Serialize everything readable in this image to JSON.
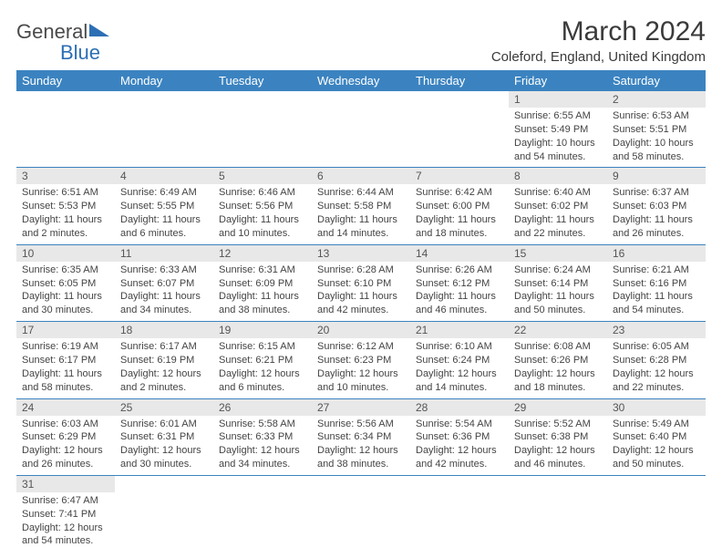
{
  "logo": {
    "text1": "General",
    "text2": "Blue"
  },
  "title": "March 2024",
  "location": "Coleford, England, United Kingdom",
  "header_bg": "#3b83c0",
  "daynum_bg": "#e8e8e8",
  "border_color": "#3b83c0",
  "weekdays": [
    "Sunday",
    "Monday",
    "Tuesday",
    "Wednesday",
    "Thursday",
    "Friday",
    "Saturday"
  ],
  "weeks": [
    [
      {
        "blank": true
      },
      {
        "blank": true
      },
      {
        "blank": true
      },
      {
        "blank": true
      },
      {
        "blank": true
      },
      {
        "day": "1",
        "sunrise": "Sunrise: 6:55 AM",
        "sunset": "Sunset: 5:49 PM",
        "daylight": "Daylight: 10 hours and 54 minutes."
      },
      {
        "day": "2",
        "sunrise": "Sunrise: 6:53 AM",
        "sunset": "Sunset: 5:51 PM",
        "daylight": "Daylight: 10 hours and 58 minutes."
      }
    ],
    [
      {
        "day": "3",
        "sunrise": "Sunrise: 6:51 AM",
        "sunset": "Sunset: 5:53 PM",
        "daylight": "Daylight: 11 hours and 2 minutes."
      },
      {
        "day": "4",
        "sunrise": "Sunrise: 6:49 AM",
        "sunset": "Sunset: 5:55 PM",
        "daylight": "Daylight: 11 hours and 6 minutes."
      },
      {
        "day": "5",
        "sunrise": "Sunrise: 6:46 AM",
        "sunset": "Sunset: 5:56 PM",
        "daylight": "Daylight: 11 hours and 10 minutes."
      },
      {
        "day": "6",
        "sunrise": "Sunrise: 6:44 AM",
        "sunset": "Sunset: 5:58 PM",
        "daylight": "Daylight: 11 hours and 14 minutes."
      },
      {
        "day": "7",
        "sunrise": "Sunrise: 6:42 AM",
        "sunset": "Sunset: 6:00 PM",
        "daylight": "Daylight: 11 hours and 18 minutes."
      },
      {
        "day": "8",
        "sunrise": "Sunrise: 6:40 AM",
        "sunset": "Sunset: 6:02 PM",
        "daylight": "Daylight: 11 hours and 22 minutes."
      },
      {
        "day": "9",
        "sunrise": "Sunrise: 6:37 AM",
        "sunset": "Sunset: 6:03 PM",
        "daylight": "Daylight: 11 hours and 26 minutes."
      }
    ],
    [
      {
        "day": "10",
        "sunrise": "Sunrise: 6:35 AM",
        "sunset": "Sunset: 6:05 PM",
        "daylight": "Daylight: 11 hours and 30 minutes."
      },
      {
        "day": "11",
        "sunrise": "Sunrise: 6:33 AM",
        "sunset": "Sunset: 6:07 PM",
        "daylight": "Daylight: 11 hours and 34 minutes."
      },
      {
        "day": "12",
        "sunrise": "Sunrise: 6:31 AM",
        "sunset": "Sunset: 6:09 PM",
        "daylight": "Daylight: 11 hours and 38 minutes."
      },
      {
        "day": "13",
        "sunrise": "Sunrise: 6:28 AM",
        "sunset": "Sunset: 6:10 PM",
        "daylight": "Daylight: 11 hours and 42 minutes."
      },
      {
        "day": "14",
        "sunrise": "Sunrise: 6:26 AM",
        "sunset": "Sunset: 6:12 PM",
        "daylight": "Daylight: 11 hours and 46 minutes."
      },
      {
        "day": "15",
        "sunrise": "Sunrise: 6:24 AM",
        "sunset": "Sunset: 6:14 PM",
        "daylight": "Daylight: 11 hours and 50 minutes."
      },
      {
        "day": "16",
        "sunrise": "Sunrise: 6:21 AM",
        "sunset": "Sunset: 6:16 PM",
        "daylight": "Daylight: 11 hours and 54 minutes."
      }
    ],
    [
      {
        "day": "17",
        "sunrise": "Sunrise: 6:19 AM",
        "sunset": "Sunset: 6:17 PM",
        "daylight": "Daylight: 11 hours and 58 minutes."
      },
      {
        "day": "18",
        "sunrise": "Sunrise: 6:17 AM",
        "sunset": "Sunset: 6:19 PM",
        "daylight": "Daylight: 12 hours and 2 minutes."
      },
      {
        "day": "19",
        "sunrise": "Sunrise: 6:15 AM",
        "sunset": "Sunset: 6:21 PM",
        "daylight": "Daylight: 12 hours and 6 minutes."
      },
      {
        "day": "20",
        "sunrise": "Sunrise: 6:12 AM",
        "sunset": "Sunset: 6:23 PM",
        "daylight": "Daylight: 12 hours and 10 minutes."
      },
      {
        "day": "21",
        "sunrise": "Sunrise: 6:10 AM",
        "sunset": "Sunset: 6:24 PM",
        "daylight": "Daylight: 12 hours and 14 minutes."
      },
      {
        "day": "22",
        "sunrise": "Sunrise: 6:08 AM",
        "sunset": "Sunset: 6:26 PM",
        "daylight": "Daylight: 12 hours and 18 minutes."
      },
      {
        "day": "23",
        "sunrise": "Sunrise: 6:05 AM",
        "sunset": "Sunset: 6:28 PM",
        "daylight": "Daylight: 12 hours and 22 minutes."
      }
    ],
    [
      {
        "day": "24",
        "sunrise": "Sunrise: 6:03 AM",
        "sunset": "Sunset: 6:29 PM",
        "daylight": "Daylight: 12 hours and 26 minutes."
      },
      {
        "day": "25",
        "sunrise": "Sunrise: 6:01 AM",
        "sunset": "Sunset: 6:31 PM",
        "daylight": "Daylight: 12 hours and 30 minutes."
      },
      {
        "day": "26",
        "sunrise": "Sunrise: 5:58 AM",
        "sunset": "Sunset: 6:33 PM",
        "daylight": "Daylight: 12 hours and 34 minutes."
      },
      {
        "day": "27",
        "sunrise": "Sunrise: 5:56 AM",
        "sunset": "Sunset: 6:34 PM",
        "daylight": "Daylight: 12 hours and 38 minutes."
      },
      {
        "day": "28",
        "sunrise": "Sunrise: 5:54 AM",
        "sunset": "Sunset: 6:36 PM",
        "daylight": "Daylight: 12 hours and 42 minutes."
      },
      {
        "day": "29",
        "sunrise": "Sunrise: 5:52 AM",
        "sunset": "Sunset: 6:38 PM",
        "daylight": "Daylight: 12 hours and 46 minutes."
      },
      {
        "day": "30",
        "sunrise": "Sunrise: 5:49 AM",
        "sunset": "Sunset: 6:40 PM",
        "daylight": "Daylight: 12 hours and 50 minutes."
      }
    ],
    [
      {
        "day": "31",
        "sunrise": "Sunrise: 6:47 AM",
        "sunset": "Sunset: 7:41 PM",
        "daylight": "Daylight: 12 hours and 54 minutes."
      },
      {
        "blank": true
      },
      {
        "blank": true
      },
      {
        "blank": true
      },
      {
        "blank": true
      },
      {
        "blank": true
      },
      {
        "blank": true
      }
    ]
  ]
}
